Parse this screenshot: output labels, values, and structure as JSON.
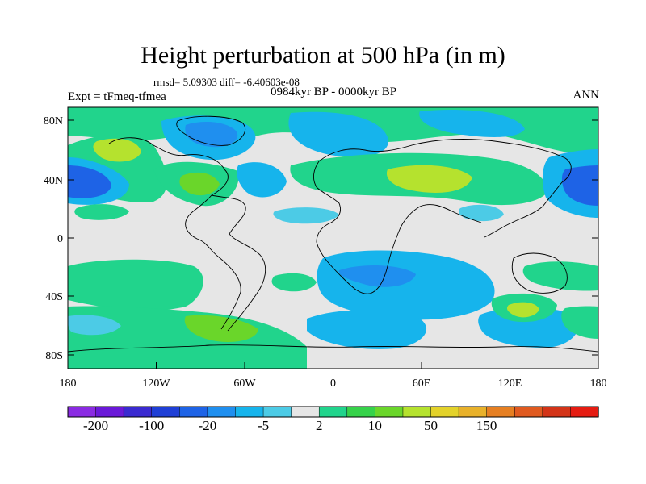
{
  "title": "Height perturbation at 500 hPa (in m)",
  "stats": "rmsd= 5.09303 diff= -6.40603e-08",
  "experiment": "Expt = tFmeq-tfmea",
  "period": "0984kyr BP - 0000kyr BP",
  "season": "ANN",
  "map": {
    "projection": "cylindrical equidistant",
    "lat_ticks": [
      "80N",
      "40N",
      "0",
      "40S",
      "80S"
    ],
    "lon_ticks": [
      "180",
      "120W",
      "60W",
      "0",
      "60E",
      "120E",
      "180"
    ]
  },
  "colorbar": {
    "labels": [
      "-200",
      "-100",
      "-20",
      "-5",
      "2",
      "10",
      "50",
      "150"
    ],
    "colors": [
      "#8a2be2",
      "#6a19d8",
      "#3a2ad0",
      "#1f3fd6",
      "#1e63e6",
      "#1f8fef",
      "#16b4ec",
      "#4ccbe6",
      "#e6e6e6",
      "#21d48c",
      "#36d24a",
      "#6ad62a",
      "#b5e22e",
      "#e3d22a",
      "#e8b12a",
      "#e67f22",
      "#e05a20",
      "#d33418",
      "#e51c12"
    ]
  }
}
